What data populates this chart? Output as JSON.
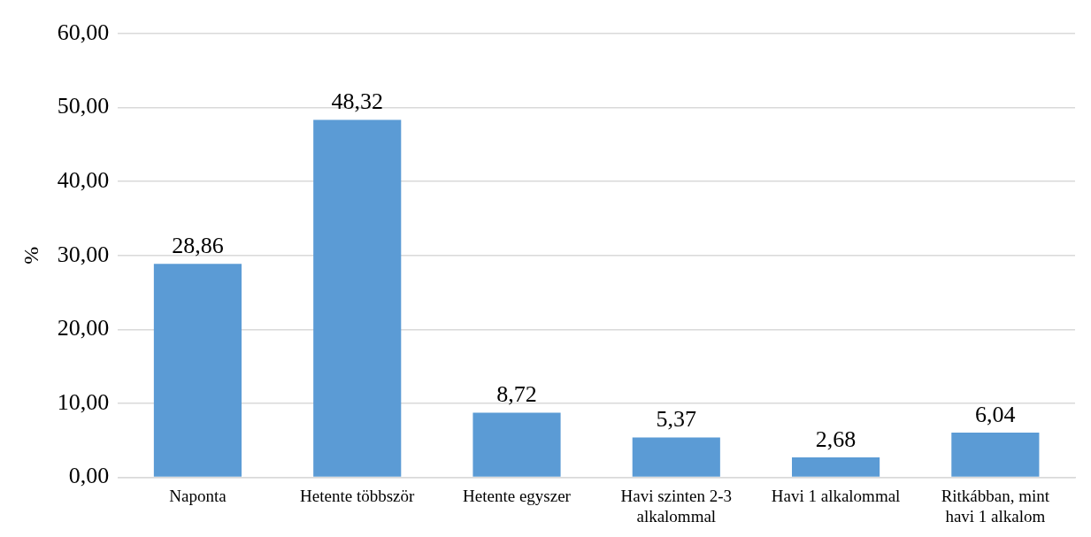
{
  "chart_data": {
    "type": "bar",
    "ylabel": "%",
    "categories": [
      "Naponta",
      "Hetente többször",
      "Hetente egyszer",
      "Havi szinten 2-3 alkalommal",
      "Havi 1 alkalommal",
      "Ritkábban, mint havi 1 alkalom"
    ],
    "values": [
      28.86,
      48.32,
      8.72,
      5.37,
      2.68,
      6.04
    ],
    "value_labels": [
      "28,86",
      "48,32",
      "8,72",
      "5,37",
      "2,68",
      "6,04"
    ],
    "color": "#5b9bd5",
    "ylim": [
      0,
      60
    ],
    "yticks": [
      {
        "value": 0,
        "label": "0,00"
      },
      {
        "value": 10,
        "label": "10,00"
      },
      {
        "value": 20,
        "label": "20,00"
      },
      {
        "value": 30,
        "label": "30,00"
      },
      {
        "value": 40,
        "label": "40,00"
      },
      {
        "value": 50,
        "label": "50,00"
      },
      {
        "value": 60,
        "label": "60,00"
      }
    ],
    "grid": "y",
    "legend": false
  }
}
